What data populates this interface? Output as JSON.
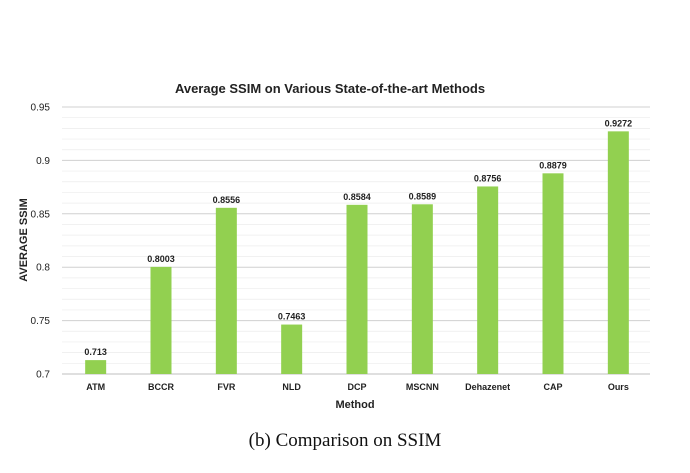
{
  "chart_data": {
    "type": "bar",
    "title": "Average SSIM on Various State-of-the-art Methods",
    "xlabel": "Method",
    "ylabel": "AVERAGE SSIM",
    "categories": [
      "ATM",
      "BCCR",
      "FVR",
      "NLD",
      "DCP",
      "MSCNN",
      "Dehazenet",
      "CAP",
      "Ours"
    ],
    "values": [
      0.713,
      0.8003,
      0.8556,
      0.7463,
      0.8584,
      0.8589,
      0.8756,
      0.8879,
      0.9272
    ],
    "value_labels": [
      "0.713",
      "0.8003",
      "0.8556",
      "0.7463",
      "0.8584",
      "0.8589",
      "0.8756",
      "0.8879",
      "0.9272"
    ],
    "ylim": [
      0.7,
      0.95
    ],
    "yticks": [
      "0.7",
      "0.75",
      "0.8",
      "0.85",
      "0.9",
      "0.95"
    ],
    "grid": true,
    "bar_color": "#92d050",
    "grid_color": "#d9d9d9"
  },
  "caption": "(b) Comparison on SSIM"
}
